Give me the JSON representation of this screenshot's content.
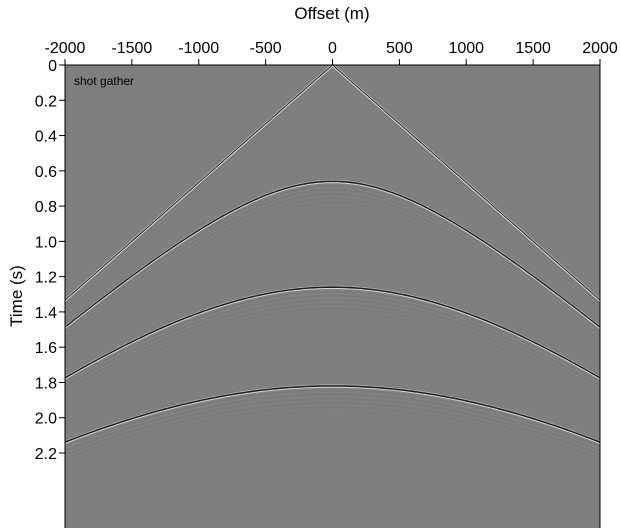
{
  "chart_data": {
    "type": "seismic-shot-gather",
    "panel_label": "shot gather",
    "xlabel": "Offset (m)",
    "ylabel": "Time (s)",
    "xlim": [
      -2000,
      2000
    ],
    "ylim": [
      0,
      2.4
    ],
    "y_inverted": true,
    "x_axis_position": "top",
    "x_ticks": [
      -2000,
      -1500,
      -1000,
      -500,
      0,
      500,
      1000,
      1500,
      2000
    ],
    "x_tick_labels": [
      "-2000",
      "-1500",
      "-1000",
      "-500",
      "0",
      "500",
      "1000",
      "1500",
      "2000"
    ],
    "y_ticks": [
      0,
      0.2,
      0.4,
      0.6,
      0.8,
      1.0,
      1.2,
      1.4,
      1.6,
      1.8,
      2.0,
      2.2
    ],
    "y_tick_labels": [
      "0",
      "0.2",
      "0.4",
      "0.6",
      "0.8",
      "1.0",
      "1.2",
      "1.4",
      "1.6",
      "1.8",
      "2.0",
      "2.2"
    ],
    "background_color": "#7f7f7f",
    "grid": false,
    "events": [
      {
        "kind": "direct-wave",
        "t0": 0.0,
        "velocity": 1500
      },
      {
        "kind": "reflection",
        "t0": 0.66,
        "velocity": 1500
      },
      {
        "kind": "reflection",
        "t0": 1.26,
        "velocity": 1600
      },
      {
        "kind": "reflection",
        "t0": 1.82,
        "velocity": 1780
      }
    ]
  }
}
